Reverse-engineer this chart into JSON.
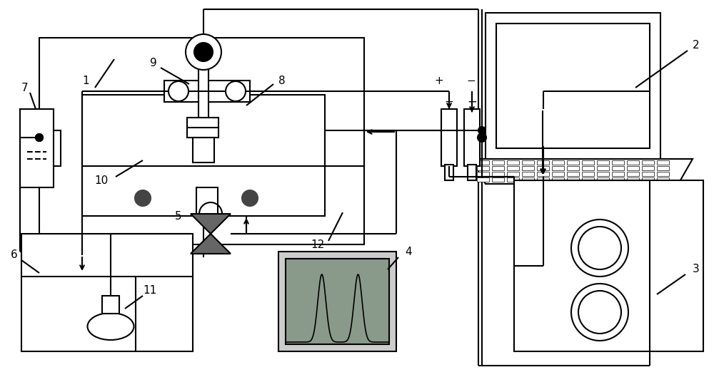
{
  "bg_color": "#ffffff",
  "line_color": "#000000",
  "lw": 1.5,
  "gray_light": "#d0d0d0",
  "gray_mid": "#a0a8a0",
  "dark": "#333333"
}
